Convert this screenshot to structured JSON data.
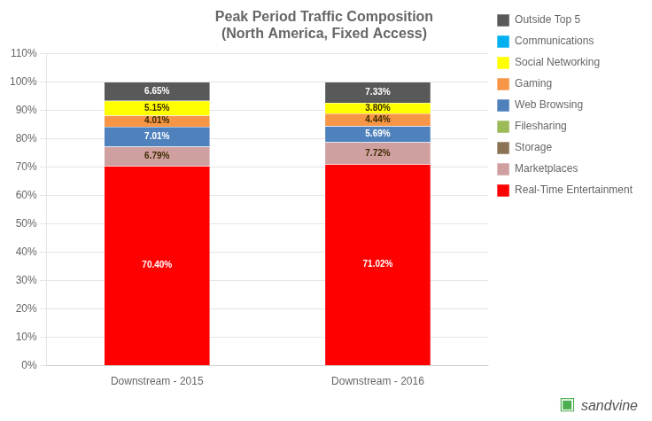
{
  "chart_data": {
    "type": "bar",
    "stacked": true,
    "title": "Peak Period Traffic Composition\n(North America, Fixed Access)",
    "categories": [
      "Downstream - 2015",
      "Downstream - 2016"
    ],
    "series": [
      {
        "name": "Real-Time Entertainment",
        "color": "#FF0000",
        "values": [
          70.4,
          71.02
        ],
        "value_labels": [
          "70.40%",
          "71.02%"
        ]
      },
      {
        "name": "Marketplaces",
        "color": "#D0A0A0",
        "values": [
          6.79,
          7.72
        ],
        "value_labels": [
          "6.79%",
          "7.72%"
        ]
      },
      {
        "name": "Storage",
        "color": "#8B7355",
        "values": [
          0.0,
          0.0
        ],
        "value_labels": [
          null,
          null
        ]
      },
      {
        "name": "Filesharing",
        "color": "#9BBB59",
        "values": [
          0.0,
          0.0
        ],
        "value_labels": [
          null,
          null
        ]
      },
      {
        "name": "Web Browsing",
        "color": "#4F81BD",
        "values": [
          7.01,
          5.69
        ],
        "value_labels": [
          "7.01%",
          "5.69%"
        ]
      },
      {
        "name": "Gaming",
        "color": "#F79646",
        "values": [
          4.01,
          4.44
        ],
        "value_labels": [
          "4.01%",
          "4.44%"
        ]
      },
      {
        "name": "Social Networking",
        "color": "#FFFF00",
        "values": [
          5.15,
          3.8
        ],
        "value_labels": [
          "5.15%",
          "3.80%"
        ]
      },
      {
        "name": "Communications",
        "color": "#00B0F0",
        "values": [
          0.0,
          0.0
        ],
        "value_labels": [
          null,
          null
        ]
      },
      {
        "name": "Outside Top 5",
        "color": "#595959",
        "values": [
          6.65,
          7.33
        ],
        "value_labels": [
          "6.65%",
          "7.33%"
        ]
      }
    ],
    "ylim": [
      0,
      110
    ],
    "yticks": [
      {
        "value": 0,
        "label": "0%"
      },
      {
        "value": 10,
        "label": "10%"
      },
      {
        "value": 20,
        "label": "20%"
      },
      {
        "value": 30,
        "label": "30%"
      },
      {
        "value": 40,
        "label": "40%"
      },
      {
        "value": 50,
        "label": "50%"
      },
      {
        "value": 60,
        "label": "60%"
      },
      {
        "value": 70,
        "label": "70%"
      },
      {
        "value": 80,
        "label": "80%"
      },
      {
        "value": 90,
        "label": "90%"
      },
      {
        "value": 100,
        "label": "100%"
      },
      {
        "value": 110,
        "label": "110%"
      }
    ],
    "grid": true,
    "legend": "right",
    "data_labels": true,
    "annotations": [
      {
        "text": "▣",
        "color": "#4CAF50"
      },
      {
        "text": "sandvine",
        "color": "#555555"
      }
    ]
  }
}
